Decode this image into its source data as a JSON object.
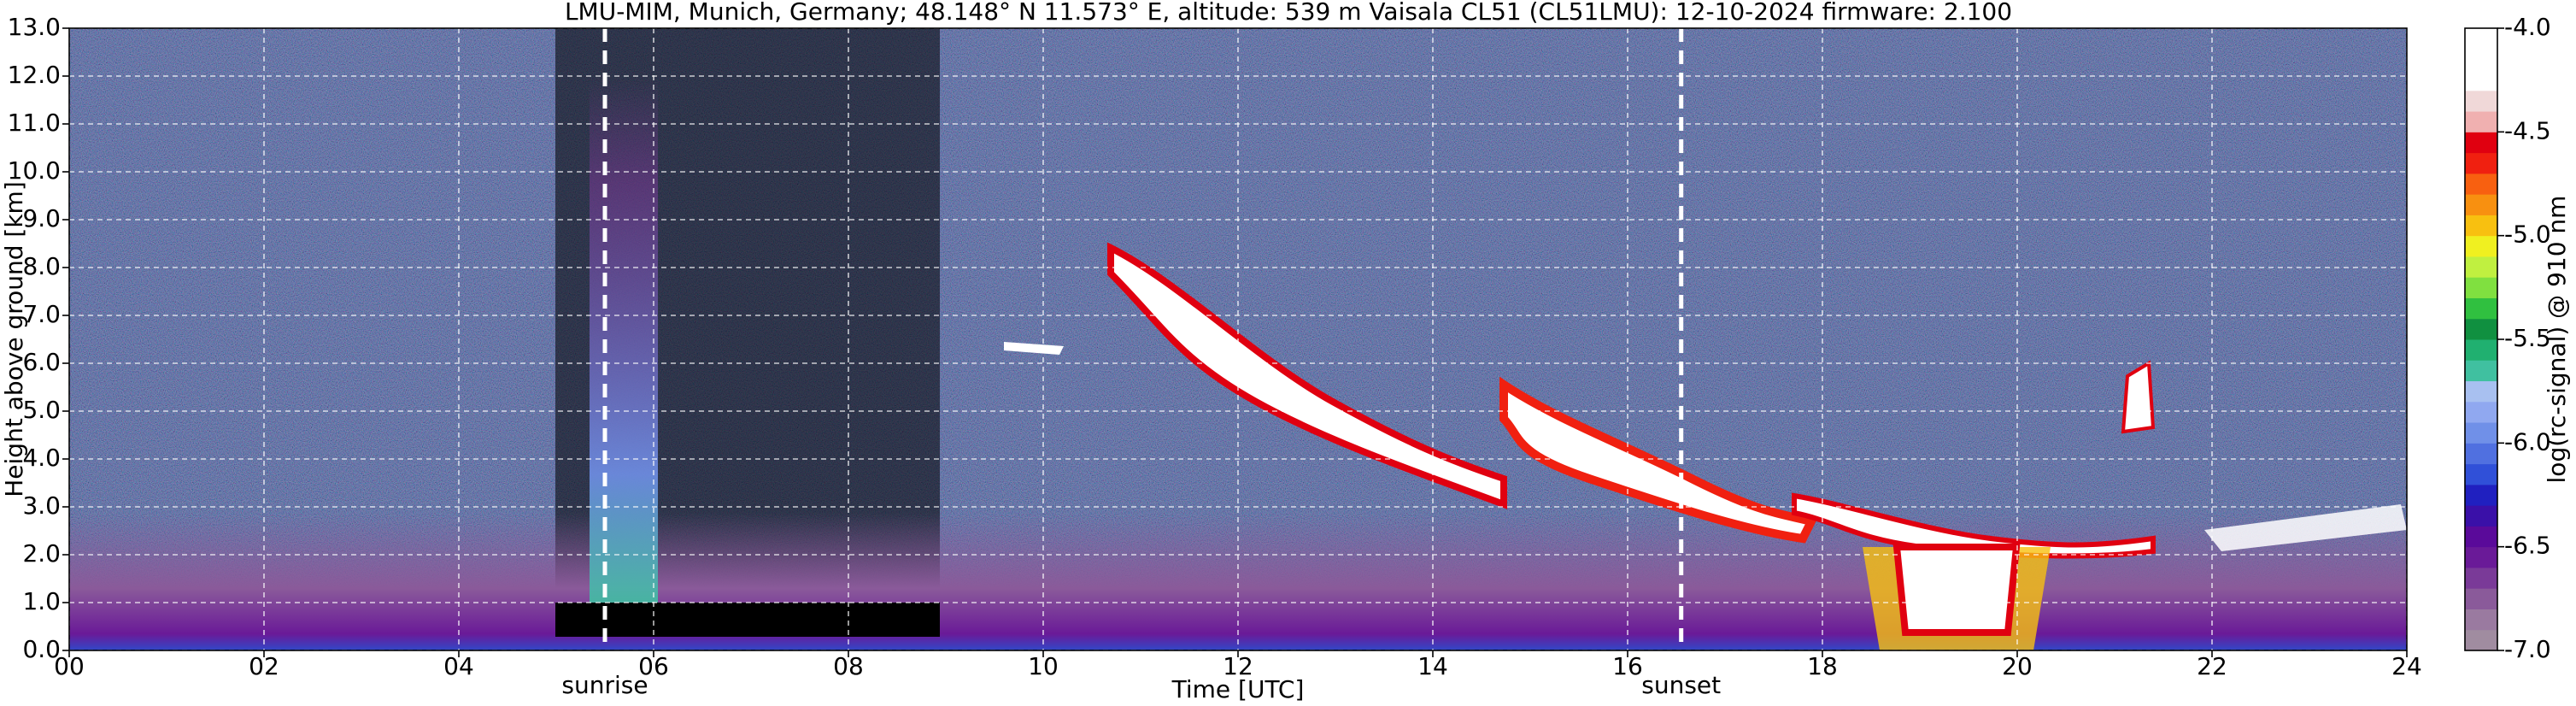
{
  "chart_data": {
    "type": "heatmap",
    "title": "LMU-MIM, Munich, Germany; 48.148° N 11.573° E, altitude: 539 m    Vaisala CL51 (CL51LMU): 12-10-2024    firmware: 2.100",
    "x_label": "Time [UTC]",
    "y_label": "Height above ground [km]",
    "xlim": [
      0,
      24
    ],
    "xticks": [
      {
        "value": 0,
        "label": "00"
      },
      {
        "value": 2,
        "label": "02"
      },
      {
        "value": 4,
        "label": "04"
      },
      {
        "value": 6,
        "label": "06"
      },
      {
        "value": 8,
        "label": "08"
      },
      10,
      12,
      14,
      16,
      18,
      20,
      22,
      24
    ],
    "ylim": [
      0,
      13
    ],
    "yticks": [
      {
        "value": 0,
        "label": "0.0"
      },
      {
        "value": 1,
        "label": "1.0"
      },
      {
        "value": 2,
        "label": "2.0"
      },
      {
        "value": 3,
        "label": "3.0"
      },
      {
        "value": 4,
        "label": "4.0"
      },
      {
        "value": 5,
        "label": "5.0"
      },
      {
        "value": 6,
        "label": "6.0"
      },
      {
        "value": 7,
        "label": "7.0"
      },
      {
        "value": 8,
        "label": "8.0"
      },
      {
        "value": 9,
        "label": "9.0"
      },
      {
        "value": 10,
        "label": "10.0"
      },
      {
        "value": 11,
        "label": "11.0"
      },
      {
        "value": 12,
        "label": "12.0"
      },
      {
        "value": 13,
        "label": "13.0"
      }
    ],
    "grid": true,
    "annotations": [
      {
        "text": "sunrise",
        "x": 5.5
      },
      {
        "text": "sunset",
        "x": 16.55
      }
    ],
    "colorbar": {
      "label": "log(rc-signal) @ 910 nm",
      "clim": [
        -7,
        -4
      ],
      "ticks": [
        {
          "value": -7,
          "label": "-7.0"
        },
        {
          "value": -6.5,
          "label": "-6.5"
        },
        {
          "value": -6,
          "label": "-6.0"
        },
        {
          "value": -5.5,
          "label": "-5.5"
        },
        {
          "value": -5,
          "label": "-5.0"
        },
        {
          "value": -4.5,
          "label": "-4.5"
        },
        {
          "value": -4,
          "label": "-4.0"
        }
      ],
      "colors": [
        "#a08ca0",
        "#9a7aa0",
        "#8a5a9a",
        "#7a3a98",
        "#6a1a98",
        "#5a0a9a",
        "#3a10a8",
        "#2020c0",
        "#3050d8",
        "#5070e0",
        "#7090e8",
        "#90a8f0",
        "#a8c0f0",
        "#40c0a0",
        "#20b070",
        "#109040",
        "#30c040",
        "#80e040",
        "#c0f040",
        "#f0f020",
        "#f8c010",
        "#f89010",
        "#f86010",
        "#f02010",
        "#e00010",
        "#f0b0b0",
        "#f0d8d8",
        "#ffffff",
        "#ffffff",
        "#ffffff"
      ]
    }
  }
}
